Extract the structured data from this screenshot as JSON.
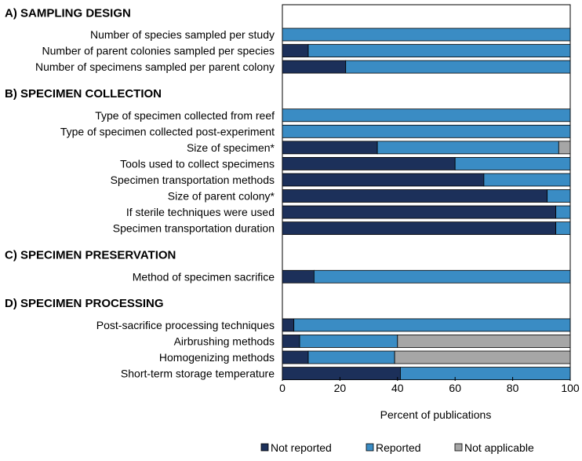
{
  "chart_data": {
    "type": "bar",
    "orientation": "horizontal",
    "stacked": true,
    "xlabel": "Percent of publications",
    "xlim": [
      0,
      100
    ],
    "xticks": [
      0,
      20,
      40,
      60,
      80,
      100
    ],
    "legend_position": "bottom",
    "series_names": [
      "Not reported",
      "Reported",
      "Not applicable"
    ],
    "colors": {
      "Not reported": "#1c305a",
      "Reported": "#3a8cc4",
      "Not applicable": "#a6a6a6"
    },
    "sections": [
      {
        "title": "A) SAMPLING DESIGN",
        "categories": [
          {
            "label": "Number of species sampled per study",
            "values": [
              0,
              100,
              0
            ]
          },
          {
            "label": "Number of parent colonies sampled per species",
            "values": [
              9,
              91,
              0
            ]
          },
          {
            "label": "Number of specimens sampled per parent colony",
            "values": [
              22,
              78,
              0
            ]
          }
        ]
      },
      {
        "title": "B) SPECIMEN COLLECTION",
        "categories": [
          {
            "label": "Type of specimen collected from reef",
            "values": [
              0,
              100,
              0
            ]
          },
          {
            "label": "Type of specimen collected post-experiment",
            "values": [
              0,
              100,
              0
            ]
          },
          {
            "label": "Size of specimen*",
            "values": [
              33,
              63,
              4
            ]
          },
          {
            "label": "Tools used to collect specimens",
            "values": [
              60,
              40,
              0
            ]
          },
          {
            "label": "Specimen transportation methods",
            "values": [
              70,
              30,
              0
            ]
          },
          {
            "label": "Size of parent colony*",
            "values": [
              92,
              8,
              0
            ]
          },
          {
            "label": "If sterile techniques were used",
            "values": [
              95,
              5,
              0
            ]
          },
          {
            "label": "Specimen transportation duration",
            "values": [
              95,
              5,
              0
            ]
          }
        ]
      },
      {
        "title": "C) SPECIMEN PRESERVATION",
        "categories": [
          {
            "label": "Method of specimen sacrifice",
            "values": [
              11,
              89,
              0
            ]
          }
        ]
      },
      {
        "title": "D) SPECIMEN PROCESSING",
        "categories": [
          {
            "label": "Post-sacrifice processing techniques",
            "values": [
              4,
              96,
              0
            ]
          },
          {
            "label": "Airbrushing methods",
            "values": [
              6,
              34,
              60
            ]
          },
          {
            "label": "Homogenizing methods",
            "values": [
              9,
              30,
              61
            ]
          },
          {
            "label": "Short-term storage temperature",
            "values": [
              41,
              59,
              0
            ]
          }
        ]
      }
    ]
  }
}
